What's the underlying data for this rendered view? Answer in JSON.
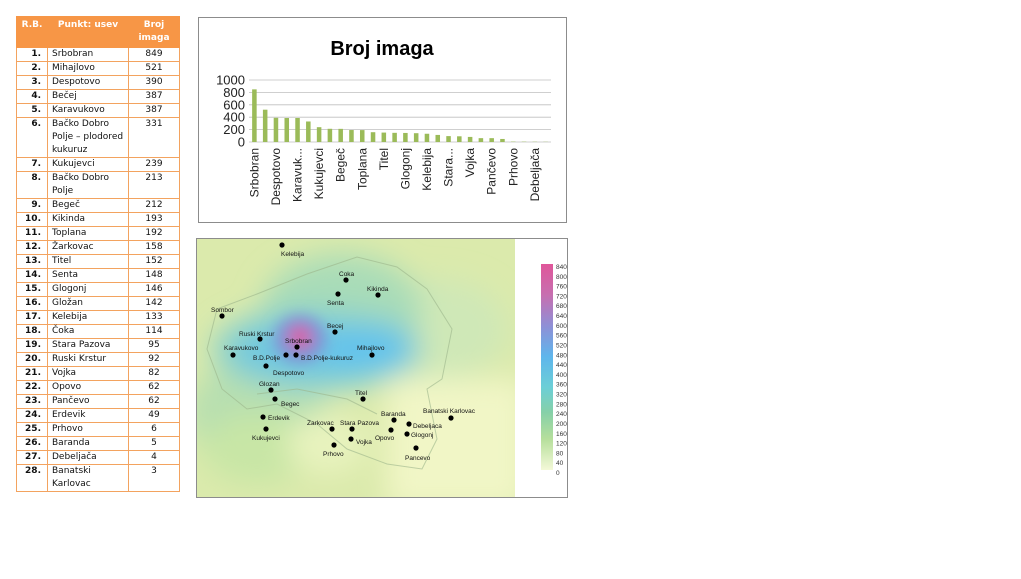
{
  "table": {
    "headers": [
      "R.B.",
      "Punkt: usev",
      "Broj imaga"
    ],
    "rows": [
      [
        "1.",
        "Srbobran",
        "849"
      ],
      [
        "2.",
        "Mihajlovo",
        "521"
      ],
      [
        "3.",
        "Despotovo",
        "390"
      ],
      [
        "4.",
        "Bečej",
        "387"
      ],
      [
        "5.",
        "Karavukovo",
        "387"
      ],
      [
        "6.",
        "Bačko Dobro Polje – plodored kukuruz",
        "331"
      ],
      [
        "7.",
        "Kukujevci",
        "239"
      ],
      [
        "8.",
        "Bačko Dobro Polje",
        "213"
      ],
      [
        "9.",
        "Begeč",
        "212"
      ],
      [
        "10.",
        "Kikinda",
        "193"
      ],
      [
        "11.",
        "Toplana",
        "192"
      ],
      [
        "12.",
        "Žarkovac",
        "158"
      ],
      [
        "13.",
        "Titel",
        "152"
      ],
      [
        "14.",
        "Senta",
        "148"
      ],
      [
        "15.",
        "Glogonj",
        "146"
      ],
      [
        "16.",
        "Gložan",
        "142"
      ],
      [
        "17.",
        "Kelebija",
        "133"
      ],
      [
        "18.",
        "Čoka",
        "114"
      ],
      [
        "19.",
        "Stara Pazova",
        "95"
      ],
      [
        "20.",
        "Ruski Krstur",
        "92"
      ],
      [
        "21.",
        "Vojka",
        "82"
      ],
      [
        "22.",
        "Opovo",
        "62"
      ],
      [
        "23.",
        "Pančevo",
        "62"
      ],
      [
        "24.",
        "Erdevik",
        "49"
      ],
      [
        "25.",
        "Prhovo",
        "6"
      ],
      [
        "26.",
        "Baranda",
        "5"
      ],
      [
        "27.",
        "Debeljača",
        "4"
      ],
      [
        "28.",
        "Banatski Karlovac",
        "3"
      ]
    ]
  },
  "chart_data": {
    "type": "bar",
    "title": "Broj imaga",
    "categories": [
      "Srbobran",
      "Mihajlovo",
      "Despotovo",
      "Bečej",
      "Karavukovo",
      "Bačko Dobro Polje – plodored kukuruz",
      "Kukujevci",
      "Bačko Dobro Polje",
      "Begeč",
      "Kikinda",
      "Toplana",
      "Žarkovac",
      "Titel",
      "Senta",
      "Glogonj",
      "Gložan",
      "Kelebija",
      "Čoka",
      "Stara Pazova",
      "Ruski Krstur",
      "Vojka",
      "Opovo",
      "Pančevo",
      "Erdevik",
      "Prhovo",
      "Baranda",
      "Debeljača",
      "Banatski Karlovac"
    ],
    "values": [
      849,
      521,
      390,
      387,
      387,
      331,
      239,
      213,
      212,
      193,
      192,
      158,
      152,
      148,
      146,
      142,
      133,
      114,
      95,
      92,
      82,
      62,
      62,
      49,
      6,
      5,
      4,
      3
    ],
    "visible_tick_labels": [
      "Srbobran",
      "Despotovo",
      "Karavuk...",
      "Kukujevci",
      "Begeč",
      "Toplana",
      "Titel",
      "Glogonj",
      "Kelebija",
      "Stara...",
      "Vojka",
      "Pančevo",
      "Prhovo",
      "Debeljača"
    ],
    "yticks": [
      "0",
      "200",
      "400",
      "600",
      "800",
      "1000"
    ],
    "ylim": [
      0,
      1000
    ],
    "grid": true,
    "legend": "none",
    "bar_color": "#9bbb59"
  },
  "map": {
    "legend_ticks": [
      "840",
      "800",
      "760",
      "720",
      "680",
      "640",
      "600",
      "560",
      "520",
      "480",
      "440",
      "400",
      "360",
      "320",
      "280",
      "240",
      "200",
      "160",
      "120",
      "80",
      "40",
      "0"
    ],
    "locations": [
      {
        "name": "Kelebija",
        "value": 133
      },
      {
        "name": "Coka",
        "value": 114
      },
      {
        "name": "Kikinda",
        "value": 193
      },
      {
        "name": "Senta",
        "value": 148
      },
      {
        "name": "Sombor",
        "value": null
      },
      {
        "name": "Becej",
        "value": 387
      },
      {
        "name": "Ruski Krstur",
        "value": 92
      },
      {
        "name": "Srbobran",
        "value": 849
      },
      {
        "name": "Karavukovo",
        "value": 387
      },
      {
        "name": "B.D.Polje",
        "value": 213
      },
      {
        "name": "B.D.Polje-kukuruz",
        "value": 331
      },
      {
        "name": "Mihajlovo",
        "value": 521
      },
      {
        "name": "Despotovo",
        "value": 390
      },
      {
        "name": "Glozan",
        "value": 142
      },
      {
        "name": "Titel",
        "value": 152
      },
      {
        "name": "Begec",
        "value": 212
      },
      {
        "name": "Baranda",
        "value": 5
      },
      {
        "name": "Banatski Karlovac",
        "value": 3
      },
      {
        "name": "Erdevik",
        "value": 49
      },
      {
        "name": "Zarkovac",
        "value": 158
      },
      {
        "name": "Stara Pazova",
        "value": 95
      },
      {
        "name": "Debeljaca",
        "value": 4
      },
      {
        "name": "Kukujevci",
        "value": 239
      },
      {
        "name": "Glogonj",
        "value": 146
      },
      {
        "name": "Vojka",
        "value": 82
      },
      {
        "name": "Opovo",
        "value": 62
      },
      {
        "name": "Prhovo",
        "value": 6
      },
      {
        "name": "Pancevo",
        "value": 62
      }
    ]
  }
}
